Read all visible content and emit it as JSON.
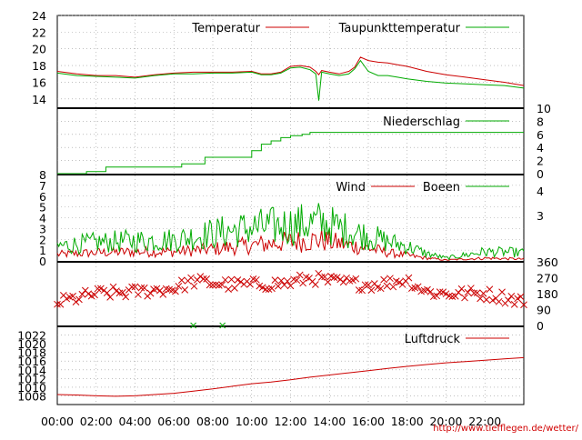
{
  "credit_url": "http://www.tiefflegen.de/wetter/",
  "x_ticks": [
    "00:00",
    "02:00",
    "04:00",
    "06:00",
    "08:00",
    "10:00",
    "12:00",
    "14:00",
    "16:00",
    "18:00",
    "20:00",
    "22:00"
  ],
  "chart_data": [
    {
      "type": "line",
      "panel": "temperature",
      "ylim": [
        13,
        24
      ],
      "y_ticks": [
        "24",
        "22",
        "20",
        "18",
        "16",
        "14"
      ],
      "x_hours": [
        0,
        1,
        2,
        3,
        4,
        5,
        6,
        7,
        8,
        9,
        10,
        10.5,
        11,
        11.5,
        12,
        12.5,
        13,
        13.3,
        13.45,
        13.6,
        14,
        14.5,
        15,
        15.3,
        15.6,
        16,
        16.5,
        17,
        17.5,
        18,
        19,
        20,
        21,
        22,
        23,
        24
      ],
      "series": [
        {
          "name": "Temperatur",
          "color": "#cc0000",
          "values": [
            17.3,
            17.0,
            16.8,
            16.8,
            16.6,
            16.9,
            17.1,
            17.2,
            17.2,
            17.2,
            17.3,
            17.0,
            17.0,
            17.2,
            17.9,
            18.0,
            17.8,
            17.3,
            16.9,
            17.4,
            17.2,
            17.0,
            17.3,
            17.8,
            19.0,
            18.6,
            18.4,
            18.3,
            18.1,
            17.9,
            17.3,
            16.9,
            16.6,
            16.3,
            16.0,
            15.6
          ]
        },
        {
          "name": "Taupunkttemperatur",
          "color": "#00aa00",
          "values": [
            17.1,
            16.8,
            16.7,
            16.6,
            16.5,
            16.8,
            17.0,
            17.0,
            17.1,
            17.1,
            17.2,
            16.9,
            16.9,
            17.1,
            17.7,
            17.8,
            17.5,
            17.0,
            13.8,
            17.2,
            17.0,
            16.8,
            17.0,
            17.6,
            18.6,
            17.3,
            16.8,
            16.8,
            16.6,
            16.4,
            16.1,
            15.9,
            15.8,
            15.7,
            15.6,
            15.3
          ]
        }
      ]
    },
    {
      "type": "line",
      "panel": "precipitation",
      "ylim": [
        0,
        10
      ],
      "y_ticks": [
        "10",
        "8",
        "6",
        "4",
        "2",
        "0"
      ],
      "series": [
        {
          "name": "Niederschlag",
          "color": "#00aa00",
          "x_hours": [
            0,
            1,
            1.5,
            2.4,
            2.5,
            5,
            6.2,
            6.4,
            7.4,
            7.6,
            9.6,
            10,
            10.5,
            11,
            11.5,
            12,
            12.6,
            13,
            24
          ],
          "values": [
            0,
            0,
            0.3,
            0.3,
            1.0,
            1.0,
            1.0,
            1.5,
            1.5,
            2.5,
            2.5,
            3.5,
            4.5,
            5.0,
            5.5,
            5.8,
            6.0,
            6.3,
            6.3
          ]
        }
      ]
    },
    {
      "type": "line",
      "panel": "wind",
      "ylim": [
        0,
        8
      ],
      "y_ticks": [
        "7",
        "6",
        "5",
        "4",
        "3",
        "2",
        "1",
        "0"
      ],
      "y2_ticks": [
        "4",
        "3"
      ],
      "series": [
        {
          "name": "Wind",
          "color": "#cc0000",
          "x_hours": [
            0,
            2,
            4,
            6,
            8,
            10,
            12,
            13.5,
            15,
            16,
            17,
            18,
            19,
            20,
            22,
            24
          ],
          "values": [
            0.7,
            0.9,
            1.0,
            1.0,
            1.3,
            1.7,
            2.1,
            2.3,
            1.7,
            1.4,
            0.9,
            0.6,
            0.3,
            0.1,
            0.3,
            0.2
          ]
        },
        {
          "name": "Boeen",
          "color": "#00aa00",
          "x_hours": [
            0,
            2,
            4,
            6,
            8,
            10,
            12,
            13.5,
            15,
            16,
            17,
            18,
            19,
            20,
            22,
            24
          ],
          "values": [
            1.6,
            2.0,
            2.2,
            2.3,
            3.0,
            3.6,
            3.9,
            4.2,
            3.3,
            2.7,
            2.1,
            1.6,
            0.8,
            0.3,
            1.0,
            0.9
          ]
        }
      ]
    },
    {
      "type": "scatter",
      "panel": "wind_direction",
      "ylim": [
        0,
        360
      ],
      "y_ticks": [
        "360",
        "270",
        "180",
        "90",
        "0"
      ],
      "series": [
        {
          "name": "",
          "color": "#cc0000",
          "x_hours": [
            0,
            2,
            4,
            6,
            7,
            8,
            9,
            10,
            12,
            13,
            14,
            15,
            16,
            17,
            18,
            19,
            20,
            22,
            24
          ],
          "values": [
            130,
            180,
            190,
            210,
            250,
            240,
            230,
            230,
            240,
            270,
            250,
            240,
            230,
            240,
            260,
            190,
            180,
            180,
            140
          ]
        },
        {
          "name": "",
          "color": "#00aa00",
          "x_hours": [
            7.0,
            8.5
          ],
          "values": [
            0,
            0
          ]
        }
      ]
    },
    {
      "type": "line",
      "panel": "pressure",
      "ylim": [
        1006,
        1024
      ],
      "y_ticks": [
        "1022",
        "1020",
        "1018",
        "1016",
        "1014",
        "1012",
        "1010",
        "1008"
      ],
      "series": [
        {
          "name": "Luftdruck",
          "color": "#cc0000",
          "x_hours": [
            0,
            1,
            2,
            3,
            4,
            5,
            6,
            7,
            8,
            9,
            10,
            11,
            12,
            13,
            14,
            15,
            16,
            17,
            18,
            19,
            20,
            21,
            22,
            23,
            24
          ],
          "values": [
            1008.3,
            1008.2,
            1008.0,
            1007.9,
            1008.0,
            1008.3,
            1008.6,
            1009.1,
            1009.6,
            1010.2,
            1010.8,
            1011.2,
            1011.7,
            1012.3,
            1012.8,
            1013.3,
            1013.8,
            1014.3,
            1014.8,
            1015.2,
            1015.6,
            1015.9,
            1016.2,
            1016.5,
            1016.8
          ]
        }
      ]
    }
  ]
}
